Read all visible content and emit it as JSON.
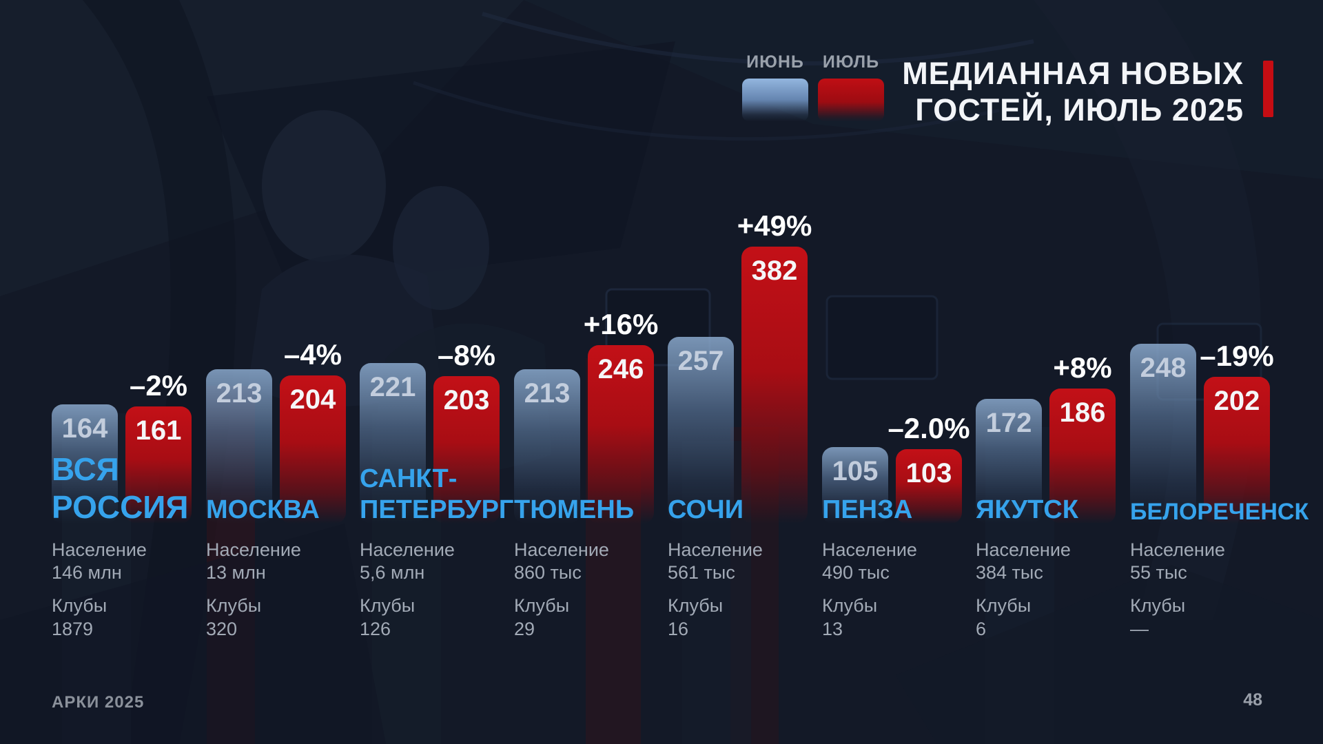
{
  "title": {
    "line1": "МЕДИАННАЯ НОВЫХ",
    "line2": "ГОСТЕЙ, ИЮЛЬ 2025"
  },
  "legend": {
    "june": "ИЮНЬ",
    "july": "ИЮЛЬ"
  },
  "labels": {
    "population": "Население",
    "clubs": "Клубы"
  },
  "footer": {
    "brand": "АРКИ 2025",
    "page": "48"
  },
  "colors": {
    "june_bar": "#7da3cf",
    "july_bar": "#b90e14",
    "city_name": "#36a3ec",
    "accent": "#c50d13",
    "background": "#131927"
  },
  "chart_data": {
    "type": "bar",
    "title": "МЕДИАННАЯ НОВЫХ ГОСТЕЙ, ИЮЛЬ 2025",
    "series_names": [
      "ИЮНЬ",
      "ИЮЛЬ"
    ],
    "legend_position": "top",
    "grid": false,
    "ylim": [
      0,
      400
    ],
    "groups": [
      {
        "city": "ВСЯ РОССИЯ",
        "city_lines": [
          "ВСЯ",
          "РОССИЯ"
        ],
        "june": 164,
        "july": 161,
        "change": "–2%",
        "population": "146 млн",
        "clubs": "1879"
      },
      {
        "city": "МОСКВА",
        "city_lines": [
          "МОСКВА"
        ],
        "june": 213,
        "july": 204,
        "change": "–4%",
        "population": "13 млн",
        "clubs": "320"
      },
      {
        "city": "САНКТ-ПЕТЕРБУРГ",
        "city_lines": [
          "САНКТ-",
          "ПЕТЕРБУРГ"
        ],
        "june": 221,
        "july": 203,
        "change": "–8%",
        "population": "5,6 млн",
        "clubs": "126"
      },
      {
        "city": "ТЮМЕНЬ",
        "city_lines": [
          "ТЮМЕНЬ"
        ],
        "june": 213,
        "july": 246,
        "change": "+16%",
        "population": "860 тыс",
        "clubs": "29"
      },
      {
        "city": "СОЧИ",
        "city_lines": [
          "СОЧИ"
        ],
        "june": 257,
        "july": 382,
        "change": "+49%",
        "population": "561 тыс",
        "clubs": "16"
      },
      {
        "city": "ПЕНЗА",
        "city_lines": [
          "ПЕНЗА"
        ],
        "june": 105,
        "july": 103,
        "change": "–2.0%",
        "population": "490 тыс",
        "clubs": "13"
      },
      {
        "city": "ЯКУТСК",
        "city_lines": [
          "ЯКУТСК"
        ],
        "june": 172,
        "july": 186,
        "change": "+8%",
        "population": "384 тыс",
        "clubs": "6"
      },
      {
        "city": "БЕЛОРЕЧЕНСК",
        "city_lines": [
          "БЕЛОРЕЧЕНСК"
        ],
        "june": 248,
        "july": 202,
        "change": "–19%",
        "population": "55 тыс",
        "clubs": "—"
      }
    ]
  }
}
